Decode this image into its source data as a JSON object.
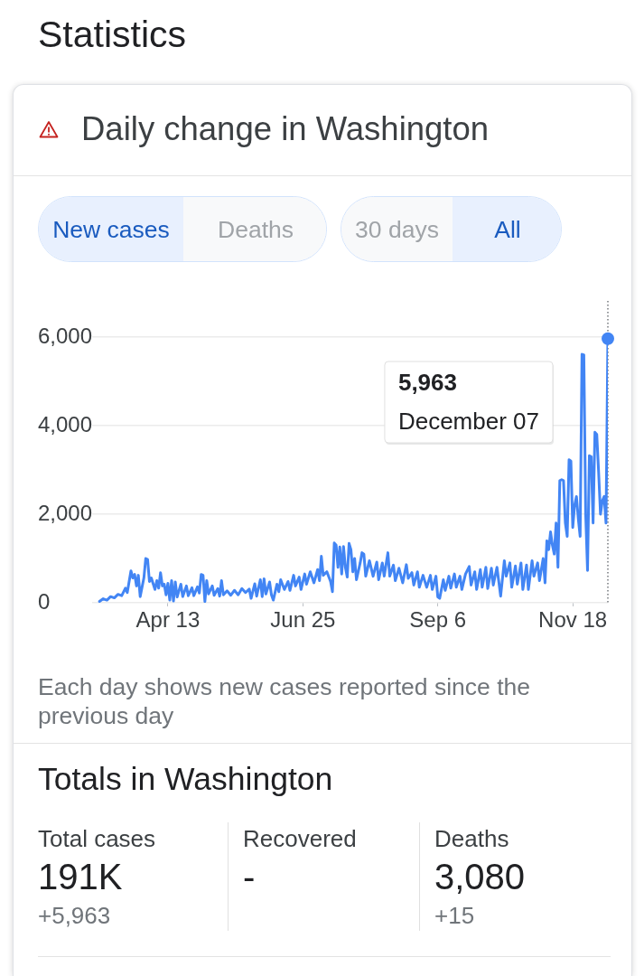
{
  "chart_data": [
    {
      "type": "line",
      "title": "Daily change in Washington",
      "annotations": [
        "Statistics",
        "New cases",
        "Deaths",
        "30 days",
        "All",
        "Each day shows new cases reported since the previous day",
        "5,963",
        "December 07"
      ],
      "series": [
        {
          "type": "line",
          "color": "#4285f4",
          "x": [
            "--03-07",
            "--03-09",
            "--03-11",
            "--03-13",
            "--03-15",
            "--03-17",
            "--03-19",
            "--03-21",
            "--03-22",
            "--03-24",
            "--03-25",
            "--03-26",
            "--03-27",
            "--03-28",
            "--03-29",
            "--03-31",
            "--04-01",
            "--04-02",
            "--04-03",
            "--04-04",
            "--04-06",
            "--04-07",
            "--04-08",
            "--04-09",
            "--04-10",
            "--04-11",
            "--04-12",
            "--04-13",
            "--04-14",
            "--04-15",
            "--04-16",
            "--04-17",
            "--04-18",
            "--04-20",
            "--04-21",
            "--04-23",
            "--04-24",
            "--04-26",
            "--04-27",
            "--04-29",
            "--04-30",
            "--05-01",
            "--05-02",
            "--05-03",
            "--05-04",
            "--05-05",
            "--05-07",
            "--05-08",
            "--05-10",
            "--05-11",
            "--05-12",
            "--05-13",
            "--05-15",
            "--05-17",
            "--05-19",
            "--05-21",
            "--05-23",
            "--05-25",
            "--05-27",
            "--05-28",
            "--05-30",
            "--05-31",
            "--06-02",
            "--06-03",
            "--06-04",
            "--06-05",
            "--06-07",
            "--06-08",
            "--06-09",
            "--06-11",
            "--06-12",
            "--06-13",
            "--06-15",
            "--06-17",
            "--06-18",
            "--06-20",
            "--06-21",
            "--06-23",
            "--06-24",
            "--06-26",
            "--06-27",
            "--06-29",
            "--07-01",
            "--07-03",
            "--07-04",
            "--07-05",
            "--07-06",
            "--07-08",
            "--07-10",
            "--07-11",
            "--07-12",
            "--07-13",
            "--07-14",
            "--07-15",
            "--07-16",
            "--07-17",
            "--07-18",
            "--07-19",
            "--07-20",
            "--07-21",
            "--07-22",
            "--07-23",
            "--07-24",
            "--07-26",
            "--07-27",
            "--07-28",
            "--07-29",
            "--07-31",
            "--08-02",
            "--08-04",
            "--08-05",
            "--08-07",
            "--08-08",
            "--08-10",
            "--08-11",
            "--08-13",
            "--08-14",
            "--08-16",
            "--08-18",
            "--08-20",
            "--08-21",
            "--08-23",
            "--08-24",
            "--08-26",
            "--08-27",
            "--08-29",
            "--08-31",
            "--09-02",
            "--09-03",
            "--09-05",
            "--09-06",
            "--09-07",
            "--09-09",
            "--09-10",
            "--09-12",
            "--09-13",
            "--09-15",
            "--09-16",
            "--09-18",
            "--09-19",
            "--09-21",
            "--09-23",
            "--09-24",
            "--09-26",
            "--09-27",
            "--09-29",
            "--09-30",
            "--10-02",
            "--10-03",
            "--10-05",
            "--10-06",
            "--10-08",
            "--10-10",
            "--10-12",
            "--10-13",
            "--10-15",
            "--10-16",
            "--10-18",
            "--10-19",
            "--10-21",
            "--10-22",
            "--10-24",
            "--10-25",
            "--10-27",
            "--10-28",
            "--10-30",
            "--10-31",
            "--11-02",
            "--11-03",
            "--11-04",
            "--11-05",
            "--11-06",
            "--11-07",
            "--11-08",
            "--11-09",
            "--11-10",
            "--11-11",
            "--11-12",
            "--11-13",
            "--11-14",
            "--11-15",
            "--11-16",
            "--11-17",
            "--11-18",
            "--11-19",
            "--11-20",
            "--11-21",
            "--11-22",
            "--11-23",
            "--11-24",
            "--11-25",
            "--11-26",
            "--11-27",
            "--11-28",
            "--11-29",
            "--11-30",
            "--12-01",
            "--12-02",
            "--12-03",
            "--12-04",
            "--12-05",
            "--12-06",
            "--12-07"
          ],
          "values": [
            30,
            90,
            60,
            140,
            110,
            190,
            160,
            330,
            230,
            720,
            560,
            640,
            380,
            620,
            140,
            560,
            1000,
            980,
            480,
            560,
            300,
            500,
            330,
            680,
            380,
            420,
            180,
            440,
            60,
            500,
            40,
            470,
            130,
            420,
            140,
            380,
            160,
            340,
            160,
            360,
            220,
            640,
            620,
            30,
            500,
            200,
            380,
            170,
            320,
            150,
            500,
            180,
            270,
            170,
            280,
            180,
            320,
            230,
            310,
            100,
            430,
            150,
            520,
            140,
            540,
            200,
            470,
            180,
            60,
            420,
            250,
            520,
            300,
            480,
            280,
            620,
            380,
            580,
            300,
            650,
            420,
            700,
            450,
            750,
            500,
            1050,
            620,
            700,
            480,
            250,
            1350,
            1300,
            800,
            1260,
            650,
            1270,
            800,
            580,
            1340,
            1200,
            700,
            1000,
            520,
            900,
            1130,
            1100,
            600,
            950,
            600,
            920,
            520,
            900,
            600,
            1130,
            600,
            850,
            500,
            780,
            450,
            860,
            550,
            680,
            400,
            700,
            350,
            620,
            350,
            620,
            300,
            600,
            130,
            100,
            520,
            280,
            600,
            330,
            650,
            350,
            600,
            300,
            650,
            820,
            400,
            700,
            300,
            750,
            350,
            800,
            320,
            780,
            400,
            800,
            150,
            950,
            600,
            900,
            350,
            830,
            420,
            900,
            300,
            850,
            300,
            950,
            600,
            900,
            500,
            1000,
            450,
            1400,
            1200,
            1600,
            1300,
            1100,
            1800,
            800,
            2760,
            2780,
            2760,
            1800,
            1500,
            3230,
            3200,
            1700,
            2200,
            2400,
            1900,
            1500,
            5610,
            5600,
            2000,
            730,
            3320,
            3300,
            1800,
            3850,
            3800,
            2950,
            2000,
            2300,
            2400,
            1800,
            5963
          ]
        },
        {
          "type": "scatter",
          "color": "#4285f4",
          "marker": "circle",
          "x": [
            "--12-07"
          ],
          "values": [
            5963
          ]
        }
      ],
      "xlim": [
        "--03-03",
        "--12-07"
      ],
      "xticks": [
        {
          "value": "--04-13",
          "label": "Apr 13"
        },
        {
          "value": "--06-25",
          "label": "Jun 25"
        },
        {
          "value": "--09-06",
          "label": "Sep 6"
        },
        {
          "value": "--11-18",
          "label": "Nov 18"
        }
      ],
      "ylim": [
        0,
        6000
      ],
      "yticks": [
        0,
        {
          "value": 2000,
          "label": "2,000"
        },
        {
          "value": 4000,
          "label": "4,000"
        },
        {
          "value": 6000,
          "label": "6,000"
        }
      ],
      "grid": "y",
      "ref_lines": [
        {
          "axis": "x",
          "value": "--12-07",
          "line_style": "dotted",
          "color": "#5f6368"
        }
      ]
    },
    {
      "type": "other",
      "title": "Totals in Washington",
      "annotations": [
        "Total cases",
        "191K",
        "+5,963",
        "Recovered",
        "-",
        "Deaths",
        "3,080",
        "+15"
      ]
    }
  ]
}
